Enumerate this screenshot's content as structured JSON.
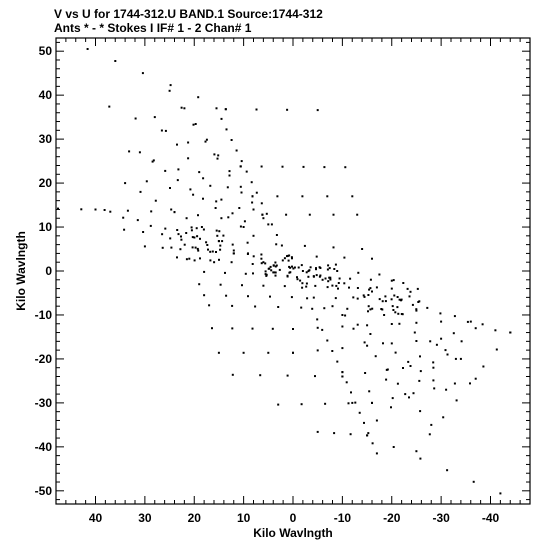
{
  "header": {
    "line1": "V vs U for 1744-312.U BAND.1   Source:1744-312",
    "line2": "Ants * - *     Stokes I   IF# 1 - 2   Chan# 1"
  },
  "chart_data": {
    "type": "scatter",
    "title": "V vs U for 1744-312.U BAND.1   Source:1744-312",
    "subtitle": "Ants * - *     Stokes I   IF# 1 - 2   Chan# 1",
    "xlabel": "Kilo Wavlngth",
    "ylabel": "Kilo Wavlngth",
    "xlim": [
      48,
      -48
    ],
    "ylim": [
      -53,
      53
    ],
    "x_reversed": true,
    "x_ticks": [
      40,
      30,
      20,
      10,
      0,
      -10,
      -20,
      -30,
      -40
    ],
    "x_tick_labels": [
      "40",
      "30",
      "20",
      "10",
      "0",
      "-10",
      "-20",
      "-30",
      "-40"
    ],
    "y_ticks": [
      50,
      40,
      30,
      20,
      10,
      0,
      -10,
      -20,
      -30,
      -40,
      -50
    ],
    "y_tick_labels": [
      "50",
      "40",
      "30",
      "20",
      "10",
      "0",
      "-10",
      "-20",
      "-30",
      "-40",
      "-50"
    ],
    "marker_color": "#000000",
    "tracks": [
      {
        "from": [
          41.6,
          50.5
        ],
        "to": [
          13.6,
          36.8
        ],
        "n": 6
      },
      {
        "from": [
          13.6,
          36.8
        ],
        "to": [
          -5.0,
          36.6
        ],
        "n": 4
      },
      {
        "from": [
          37.2,
          37.4
        ],
        "to": [
          10.6,
          23.8
        ],
        "n": 6
      },
      {
        "from": [
          10.6,
          23.8
        ],
        "to": [
          -10.6,
          23.6
        ],
        "n": 6
      },
      {
        "from": [
          33.2,
          27.2
        ],
        "to": [
          8.2,
          17.0
        ],
        "n": 6
      },
      {
        "from": [
          8.2,
          17.0
        ],
        "to": [
          -12.0,
          17.0
        ],
        "n": 5
      },
      {
        "from": [
          29.6,
          20.4
        ],
        "to": [
          6.2,
          12.8
        ],
        "n": 6
      },
      {
        "from": [
          6.2,
          12.8
        ],
        "to": [
          -13.0,
          12.8
        ],
        "n": 5
      },
      {
        "from": [
          47.6,
          14.2
        ],
        "to": [
          24.0,
          13.4
        ],
        "n": 6
      },
      {
        "from": [
          24.0,
          13.4
        ],
        "to": [
          5.0,
          10.6
        ],
        "n": 5
      },
      {
        "from": [
          34.2,
          9.4
        ],
        "to": [
          15.0,
          6.8
        ],
        "n": 6
      },
      {
        "from": [
          15.0,
          6.8
        ],
        "to": [
          -14.0,
          5.0
        ],
        "n": 6
      },
      {
        "from": [
          30.0,
          5.6
        ],
        "to": [
          12.0,
          4.0
        ],
        "n": 6
      },
      {
        "from": [
          12.0,
          4.0
        ],
        "to": [
          -16.0,
          2.8
        ],
        "n": 6
      },
      {
        "from": [
          21.0,
          2.8
        ],
        "to": [
          -17.5,
          -0.8
        ],
        "n": 10
      },
      {
        "from": [
          18.0,
          -0.2
        ],
        "to": [
          -20.0,
          -2.2
        ],
        "n": 10
      },
      {
        "from": [
          19.0,
          -3.0
        ],
        "to": [
          -20.0,
          -4.0
        ],
        "n": 10
      },
      {
        "from": [
          18.0,
          -5.5
        ],
        "to": [
          -22.0,
          -6.5
        ],
        "n": 10
      },
      {
        "from": [
          17.0,
          -7.8
        ],
        "to": [
          -25.0,
          -9.0
        ],
        "n": 10
      },
      {
        "from": [
          16.4,
          -13.0
        ],
        "to": [
          0.0,
          -13.2
        ],
        "n": 5
      },
      {
        "from": [
          0.0,
          -13.2
        ],
        "to": [
          -30.0,
          -11.5
        ],
        "n": 7
      },
      {
        "from": [
          15.0,
          -18.6
        ],
        "to": [
          0.0,
          -18.6
        ],
        "n": 4
      },
      {
        "from": [
          0.0,
          -18.6
        ],
        "to": [
          -30.0,
          -15.4
        ],
        "n": 7
      },
      {
        "from": [
          12.2,
          -23.6
        ],
        "to": [
          -10.0,
          -24.0
        ],
        "n": 5
      },
      {
        "from": [
          -10.0,
          -24.0
        ],
        "to": [
          -33.0,
          -20.0
        ],
        "n": 6
      },
      {
        "from": [
          3.0,
          -30.4
        ],
        "to": [
          -16.0,
          -30.0
        ],
        "n": 5
      },
      {
        "from": [
          -16.0,
          -30.0
        ],
        "to": [
          -37.0,
          -24.5
        ],
        "n": 6
      },
      {
        "from": [
          -5.0,
          -36.6
        ],
        "to": [
          -15.0,
          -37.4
        ],
        "n": 4
      },
      {
        "from": [
          -15.0,
          -37.4
        ],
        "to": [
          -42.0,
          -50.6
        ],
        "n": 6
      },
      {
        "from": [
          -25.0,
          -41.0
        ],
        "to": [
          -44.0,
          -14.0
        ],
        "n": 8
      },
      {
        "from": [
          -17.0,
          -34.0
        ],
        "to": [
          -37.0,
          -13.0
        ],
        "n": 8
      },
      {
        "from": [
          -12.0,
          -30.0
        ],
        "to": [
          -36.0,
          -11.5
        ],
        "n": 8
      },
      {
        "from": [
          25.0,
          41.0
        ],
        "to": [
          8.0,
          14.0
        ],
        "n": 8
      },
      {
        "from": [
          22.0,
          37.0
        ],
        "to": [
          6.0,
          12.0
        ],
        "n": 8
      },
      {
        "from": [
          15.5,
          37.0
        ],
        "to": [
          -10.0,
          -23.0
        ],
        "n": 26
      },
      {
        "from": [
          -10.0,
          -23.0
        ],
        "to": [
          -17.0,
          -41.5
        ],
        "n": 9
      },
      {
        "from": [
          40.0,
          14.0
        ],
        "to": [
          -44.0,
          -14.0
        ],
        "n": 16
      },
      {
        "from": [
          37.0,
          13.5
        ],
        "to": [
          -41.0,
          -13.5
        ],
        "n": 15
      },
      {
        "from": [
          34.0,
          20.0
        ],
        "to": [
          6.0,
          2.0
        ],
        "n": 10
      },
      {
        "from": [
          -6.0,
          -2.0
        ],
        "to": [
          -34.0,
          -20.0
        ],
        "n": 10
      },
      {
        "from": [
          31.0,
          27.0
        ],
        "to": [
          8.0,
          8.0
        ],
        "n": 10
      },
      {
        "from": [
          -8.0,
          -8.0
        ],
        "to": [
          -31.0,
          -27.0
        ],
        "n": 10
      },
      {
        "from": [
          28.0,
          35.0
        ],
        "to": [
          10.0,
          10.0
        ],
        "n": 9
      },
      {
        "from": [
          -10.0,
          -10.0
        ],
        "to": [
          -28.0,
          -35.0
        ],
        "n": 9
      }
    ],
    "clusters": [
      {
        "center": [
          4.0,
          1.0
        ],
        "spread_u": 4.5,
        "spread_v": 2.5,
        "n": 30
      },
      {
        "center": [
          -5.0,
          -1.0
        ],
        "spread_u": 4.5,
        "spread_v": 2.5,
        "n": 30
      },
      {
        "center": [
          20.0,
          6.0
        ],
        "spread_u": 6.0,
        "spread_v": 4.0,
        "n": 30
      },
      {
        "center": [
          -20.0,
          -6.0
        ],
        "spread_u": 6.0,
        "spread_v": 4.0,
        "n": 30
      }
    ]
  }
}
